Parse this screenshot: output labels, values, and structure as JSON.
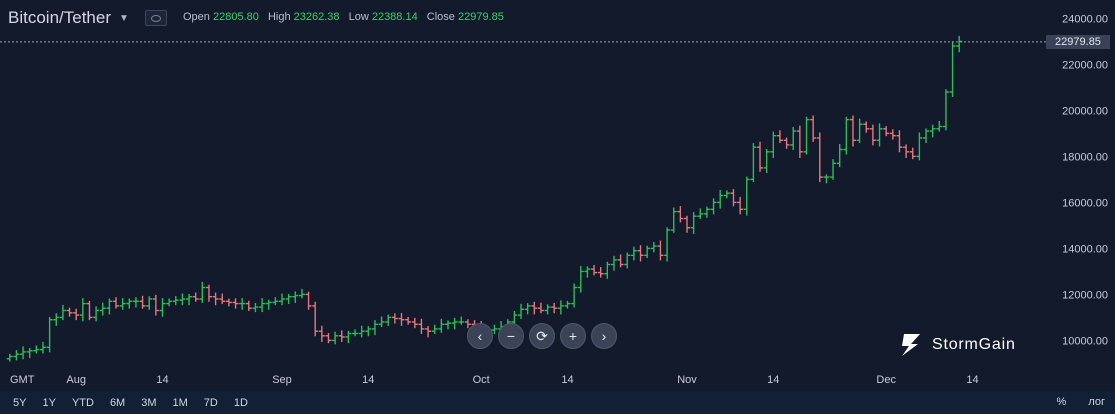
{
  "header": {
    "pair": "Bitcoin/Tether",
    "open_label": "Open",
    "open_value": "22805.80",
    "high_label": "High",
    "high_value": "23262.38",
    "low_label": "Low",
    "low_value": "22388.14",
    "close_label": "Close",
    "close_value": "22979.85"
  },
  "last_price_label": "22979.85",
  "nav_buttons": [
    "chevron-left-icon",
    "minus-icon",
    "refresh-icon",
    "plus-icon",
    "chevron-right-icon"
  ],
  "brand": "StormGain",
  "time_ranges": [
    "5Y",
    "1Y",
    "YTD",
    "6M",
    "3M",
    "1M",
    "7D",
    "1D"
  ],
  "scale_options": {
    "percent": "%",
    "log": "лог"
  },
  "colors": {
    "up": "#2ebd59",
    "down": "#e5777d",
    "background": "#131a2b",
    "grid": "#1c2438"
  },
  "chart_data": {
    "type": "ohlc",
    "title": "",
    "timezone_label": "GMT",
    "x_tick_labels": [
      "Aug",
      "14",
      "Sep",
      "14",
      "Oct",
      "14",
      "Nov",
      "14",
      "Dec",
      "14"
    ],
    "x_tick_dates": [
      "2020-08-01",
      "2020-08-14",
      "2020-09-01",
      "2020-09-14",
      "2020-10-01",
      "2020-10-14",
      "2020-11-01",
      "2020-11-14",
      "2020-12-01",
      "2020-12-14"
    ],
    "y_tick_labels": [
      "10000.00",
      "12000.00",
      "14000.00",
      "16000.00",
      "18000.00",
      "20000.00",
      "22000.00",
      "24000.00"
    ],
    "ylim": [
      8800,
      24800
    ],
    "last_price": 22979.85,
    "grid": false,
    "series": [
      {
        "start_date": "2020-07-22",
        "close": [
          9300,
          9400,
          9500,
          9550,
          9600,
          9700,
          10900,
          11000,
          11300,
          11200,
          11100,
          11600,
          11000,
          11300,
          11400,
          11700,
          11500,
          11600,
          11700,
          11700,
          11500,
          11800,
          11300,
          11600,
          11700,
          11750,
          11800,
          11900,
          11800,
          12300,
          11900,
          11800,
          11700,
          11650,
          11600,
          11600,
          11400,
          11450,
          11600,
          11650,
          11700,
          11800,
          11900,
          11950,
          12000,
          11500,
          10400,
          10200,
          10000,
          10200,
          10150,
          10300,
          10300,
          10400,
          10500,
          10700,
          10800,
          11000,
          10950,
          10900,
          10800,
          10700,
          10500,
          10400,
          10500,
          10700,
          10750,
          10800,
          10800,
          10700,
          10600,
          10500,
          10450,
          10500,
          10600,
          10800,
          11100,
          11350,
          11500,
          11400,
          11300,
          11450,
          11400,
          11500,
          11600,
          12300,
          13000,
          13100,
          12950,
          12900,
          13300,
          13500,
          13300,
          13700,
          13900,
          13700,
          14000,
          14100,
          13700,
          14800,
          15600,
          15300,
          14900,
          15400,
          15500,
          15700,
          16000,
          16300,
          16400,
          16000,
          15700,
          17000,
          18400,
          17500,
          18200,
          18900,
          18700,
          18500,
          19100,
          18200,
          19600,
          18800,
          17100,
          17100,
          17700,
          18300,
          19600,
          18700,
          19400,
          19200,
          18700,
          19200,
          19000,
          18900,
          18400,
          18200,
          18000,
          18800,
          19100,
          19200,
          19300,
          20800,
          22800,
          23000
        ]
      }
    ]
  }
}
